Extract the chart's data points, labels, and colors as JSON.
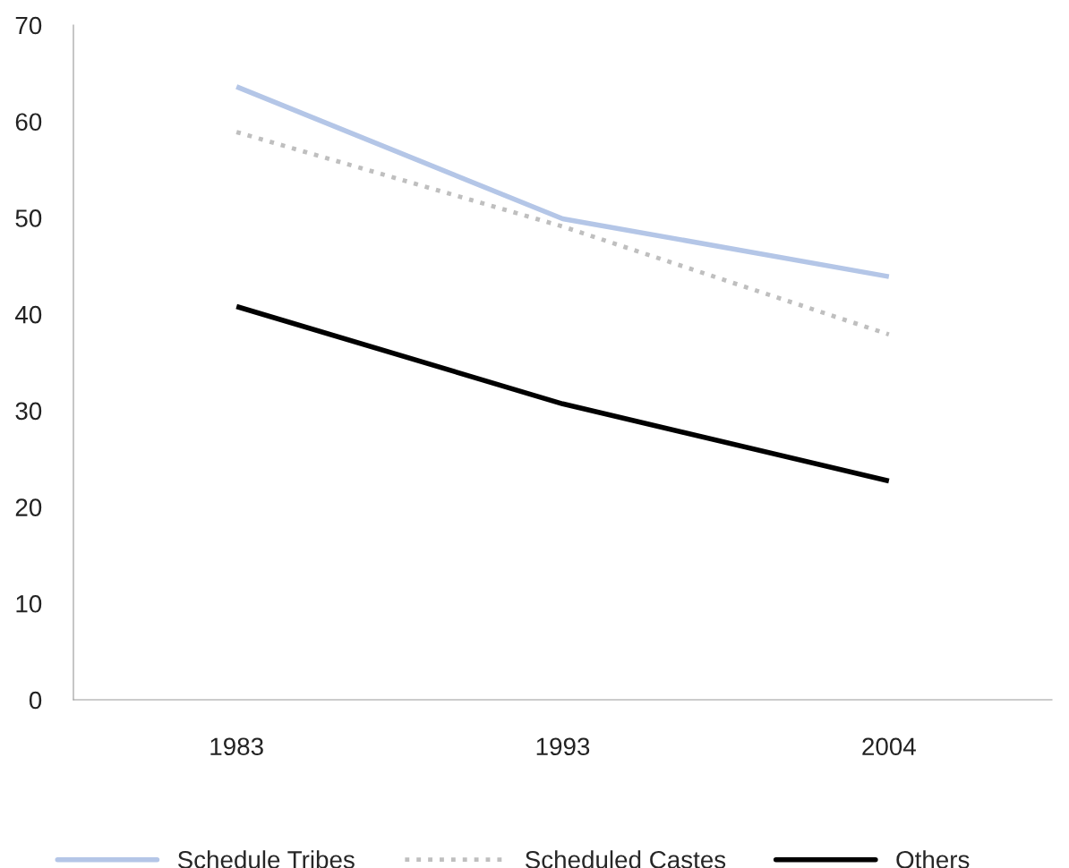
{
  "chart_data": {
    "type": "line",
    "categories": [
      "1983",
      "1993",
      "2004"
    ],
    "series": [
      {
        "name": "Schedule Tribes",
        "color": "#b4c6e7",
        "values": [
          63.6,
          49.9,
          43.9
        ],
        "line_style": "solid"
      },
      {
        "name": "Scheduled Castes",
        "color": "#bfbfbf",
        "values": [
          58.9,
          49.1,
          37.9
        ],
        "line_style": "dotted"
      },
      {
        "name": "Others",
        "color": "#000000",
        "values": [
          40.8,
          30.7,
          22.7
        ],
        "line_style": "solid"
      }
    ],
    "ylim": [
      0,
      70
    ],
    "yticks": [
      0,
      10,
      20,
      30,
      40,
      50,
      60,
      70
    ],
    "grid": false,
    "legend": "bottom",
    "marker": "none"
  }
}
